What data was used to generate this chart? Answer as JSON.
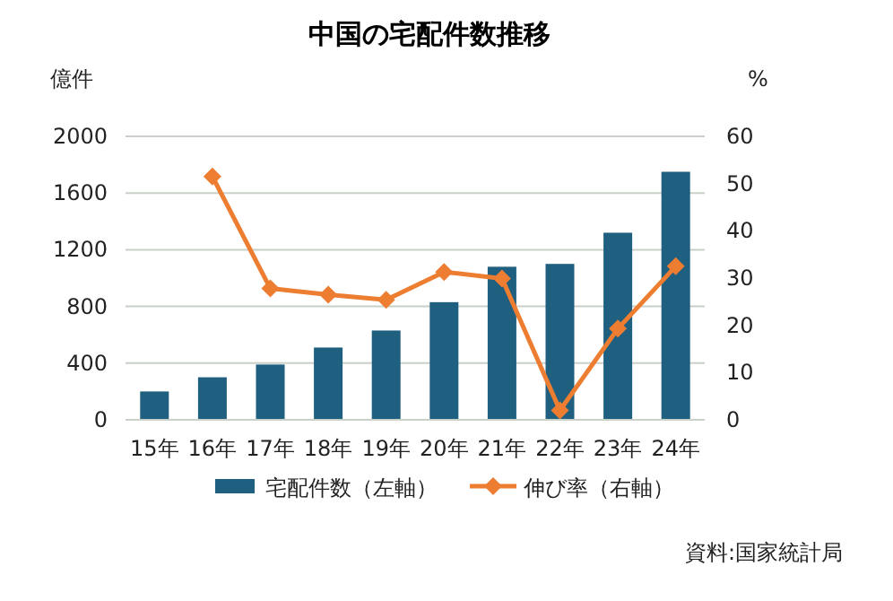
{
  "chart_data": {
    "type": "bar",
    "title": "中国の宅配件数推移",
    "ylabel": "億件",
    "y2label": "%",
    "categories": [
      "15年",
      "16年",
      "17年",
      "18年",
      "19年",
      "20年",
      "21年",
      "22年",
      "23年",
      "24年"
    ],
    "series": [
      {
        "name": "宅配件数（左軸）",
        "color": "#1f5f7f",
        "values": [
          200,
          300,
          390,
          510,
          630,
          830,
          1080,
          1100,
          1320,
          1750
        ]
      },
      {
        "name": "伸び率（右軸）",
        "type": "line",
        "axis": "y2",
        "color": "#ed7d31",
        "marker": "diamond",
        "values": [
          null,
          51.5,
          27.8,
          26.5,
          25.4,
          31.3,
          29.9,
          2,
          19.3,
          32.5
        ]
      }
    ],
    "ylim": [
      0,
      2000
    ],
    "yticks": [
      0,
      400,
      800,
      1200,
      1600,
      2000
    ],
    "y2lim": [
      0,
      60
    ],
    "y2ticks": [
      0,
      10,
      20,
      30,
      40,
      50,
      60
    ],
    "grid": "y",
    "legend": "bottom",
    "annotations": [
      "資料:国家統計局"
    ]
  }
}
